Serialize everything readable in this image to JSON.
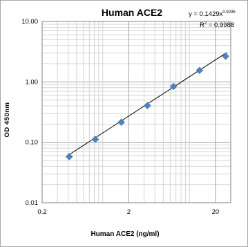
{
  "chart_data": {
    "type": "scatter",
    "title": "Human ACE2",
    "xlabel": "Human ACE2 (ng/ml)",
    "ylabel": "OD 450nm",
    "x_scale": "log",
    "y_scale": "log",
    "xlim": [
      0.2,
      30
    ],
    "ylim": [
      0.01,
      10
    ],
    "x_tick_labels": [
      "0.2",
      "2",
      "20"
    ],
    "x_tick_values": [
      0.2,
      2,
      20
    ],
    "y_tick_labels": [
      "0.01",
      "0.10",
      "1.00",
      "10.00"
    ],
    "y_tick_values": [
      0.01,
      0.1,
      1,
      10
    ],
    "grid": true,
    "series": [
      {
        "marker": "diamond",
        "color": "#4f81bd",
        "x": [
          0.41,
          0.82,
          1.64,
          3.28,
          6.56,
          13.1,
          26.2
        ],
        "y": [
          0.058,
          0.112,
          0.215,
          0.405,
          0.84,
          1.55,
          2.65
        ]
      }
    ],
    "trendline": {
      "type": "power",
      "coefficient": 0.1429,
      "exponent": 0.9295,
      "color": "#000000",
      "equation_text": "y = 0.1429x",
      "equation_exponent_text": "0.9295",
      "r2_text": "R",
      "r2_sup_text": "2",
      "r2_value_text": " = 0.9988"
    }
  }
}
